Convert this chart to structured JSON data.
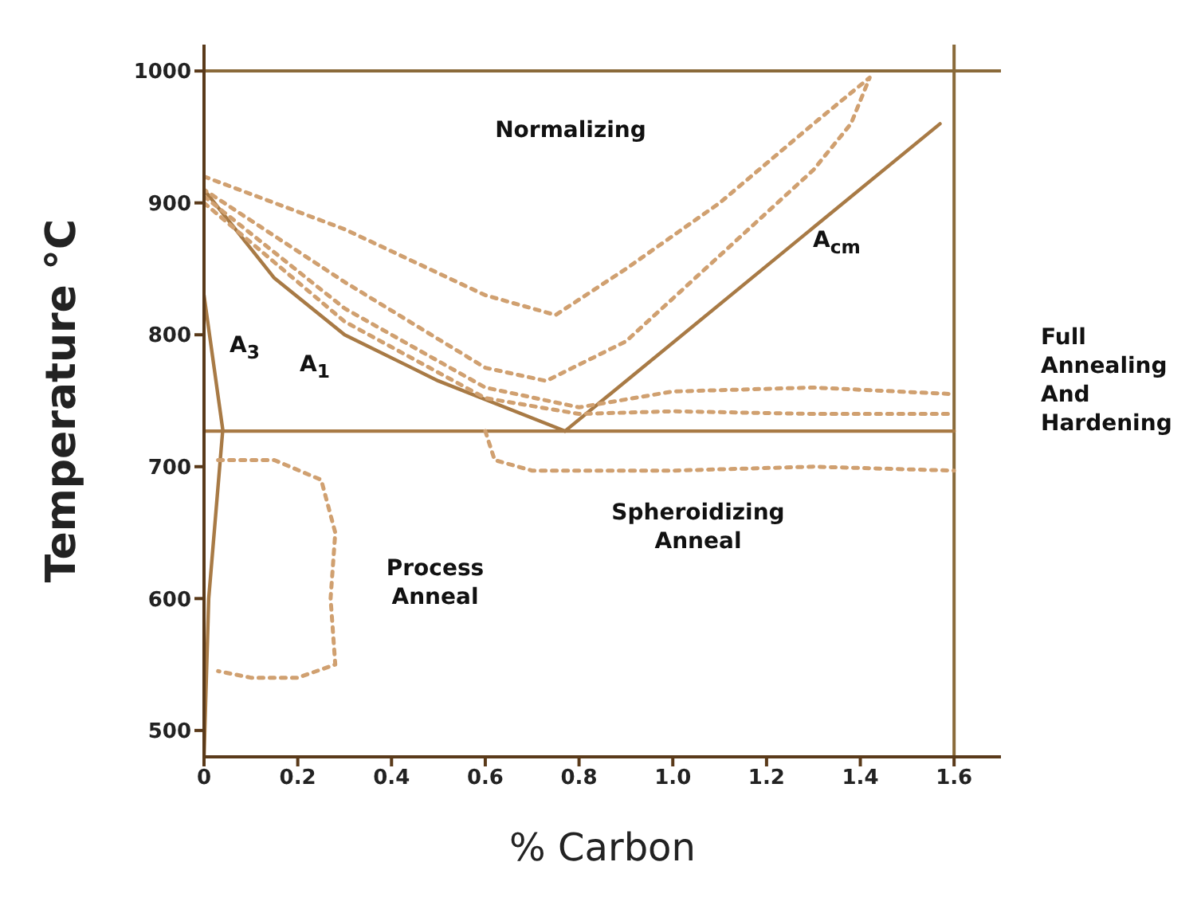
{
  "chart_data": {
    "type": "line",
    "xlabel": "% Carbon",
    "ylabel": "Temperature °C",
    "xlim": [
      0,
      1.7
    ],
    "ylim": [
      480,
      1020
    ],
    "xticks": [
      0,
      0.2,
      0.4,
      0.6,
      0.8,
      {
        "value": 1,
        "label": "1.0"
      },
      1.2,
      1.4,
      1.6
    ],
    "yticks": [
      500,
      600,
      700,
      800,
      900,
      1000
    ],
    "marker": "none",
    "ref_lines": [
      {
        "axis": "y",
        "value": 1000,
        "label": null,
        "color": "#8a6a3a"
      },
      {
        "axis": "x",
        "value": 1.6,
        "label": null,
        "color": "#8a6a3a"
      }
    ],
    "series": [
      {
        "color": "#a87a45",
        "line_style": "solid",
        "x": [
          0,
          0.15,
          0.3,
          0.5,
          0.77
        ],
        "values": [
          910,
          843,
          800,
          765,
          727
        ]
      },
      {
        "color": "#a87a45",
        "line_style": "solid",
        "x": [
          0.77,
          1.57
        ],
        "values": [
          727,
          960
        ]
      },
      {
        "color": "#a87a45",
        "line_style": "solid",
        "x": [
          0,
          1.6
        ],
        "values": [
          727,
          727
        ]
      },
      {
        "color": "#a87a45",
        "line_style": "solid",
        "x": [
          0,
          0.04,
          0.01,
          0
        ],
        "values": [
          830,
          728,
          600,
          480
        ]
      },
      {
        "color": "#d0a070",
        "line_style": "dotted",
        "x": [
          0,
          0.3,
          0.6,
          0.75,
          0.9,
          1.1,
          1.3,
          1.42,
          1.38,
          1.3,
          1.1,
          0.9,
          0.73,
          0.6,
          0.3,
          0
        ],
        "values": [
          920,
          880,
          830,
          815,
          850,
          900,
          960,
          995,
          960,
          925,
          860,
          795,
          765,
          775,
          840,
          910
        ]
      },
      {
        "color": "#d0a070",
        "line_style": "dotted",
        "x": [
          0,
          0.3,
          0.6,
          0.8,
          1,
          1.3,
          1.6
        ],
        "values": [
          905,
          820,
          760,
          745,
          757,
          760,
          755
        ]
      },
      {
        "color": "#d0a070",
        "line_style": "dotted",
        "x": [
          0,
          0.3,
          0.6,
          0.8,
          1,
          1.3,
          1.6
        ],
        "values": [
          900,
          810,
          752,
          740,
          742,
          740,
          740
        ]
      },
      {
        "color": "#d0a070",
        "line_style": "dotted",
        "x": [
          0.6,
          0.62,
          0.7,
          1,
          1.3,
          1.6
        ],
        "values": [
          727,
          705,
          697,
          697,
          700,
          697
        ]
      },
      {
        "color": "#d0a070",
        "line_style": "dotted",
        "x": [
          0.03,
          0.15,
          0.25,
          0.28,
          0.27,
          0.28,
          0.2,
          0.1,
          0.03
        ],
        "values": [
          705,
          705,
          690,
          650,
          600,
          550,
          540,
          540,
          545
        ]
      }
    ],
    "annotations": [
      "Normalizing",
      "A$_{cm}$",
      "A$_{3}$",
      "A$_{1}$",
      "Spheroidizing Anneal",
      "Process Anneal",
      "Full Annealing And Hardening"
    ]
  }
}
